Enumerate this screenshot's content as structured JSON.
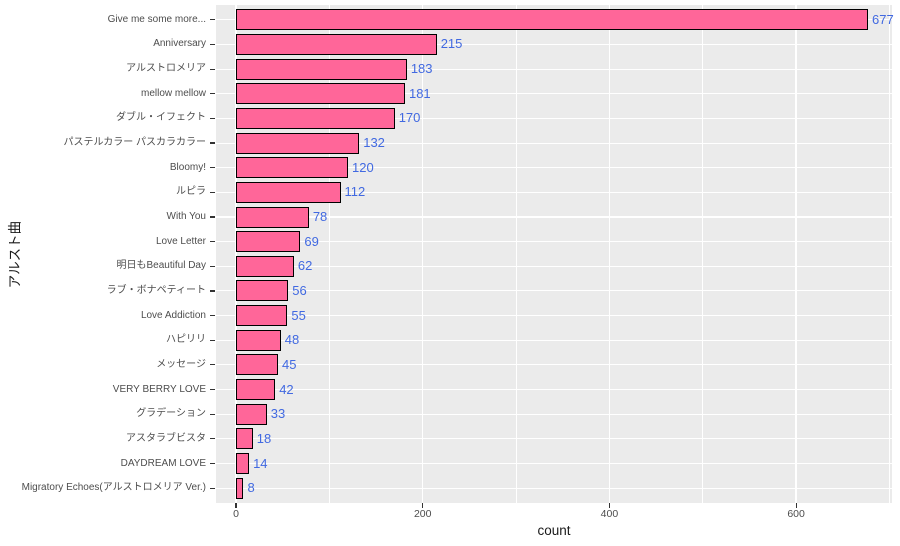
{
  "chart_data": {
    "type": "bar",
    "orientation": "horizontal",
    "title": "",
    "xlabel": "count",
    "ylabel": "アルスト曲",
    "legend_position": "none",
    "grid": true,
    "xlim": [
      0,
      706
    ],
    "x_ticks": [
      0,
      200,
      400,
      600
    ],
    "x_tick_labels": [
      "0",
      "200",
      "400",
      "600"
    ],
    "x_minor_gridlines": [
      100,
      300,
      500,
      700
    ],
    "categories": [
      "Give me some more...",
      "Anniversary",
      "アルストロメリア",
      "mellow mellow",
      "ダブル・イフェクト",
      "パステルカラー パスカラカラー",
      "Bloomy!",
      "ルピラ",
      "With You",
      "Love Letter",
      "明日もBeautiful Day",
      "ラブ・ボナペティート",
      "Love Addiction",
      "ハピリリ",
      "メッセージ",
      "VERY BERRY LOVE",
      "グラデーション",
      "アスタラブビスタ",
      "DAYDREAM LOVE",
      "Migratory Echoes(アルストロメリア Ver.)"
    ],
    "values": [
      677,
      215,
      183,
      181,
      170,
      132,
      120,
      112,
      78,
      69,
      62,
      56,
      55,
      48,
      45,
      42,
      33,
      18,
      14,
      8
    ],
    "colors": {
      "bar_fill": "#FF6699",
      "bar_border": "#000000",
      "value_label": "#4169E1",
      "panel_background": "#EBEBEB",
      "gridline": "#FFFFFF",
      "axis_text": "#4D4D4D",
      "axis_title": "#1a1a1a",
      "tick_mark": "#333333"
    }
  }
}
